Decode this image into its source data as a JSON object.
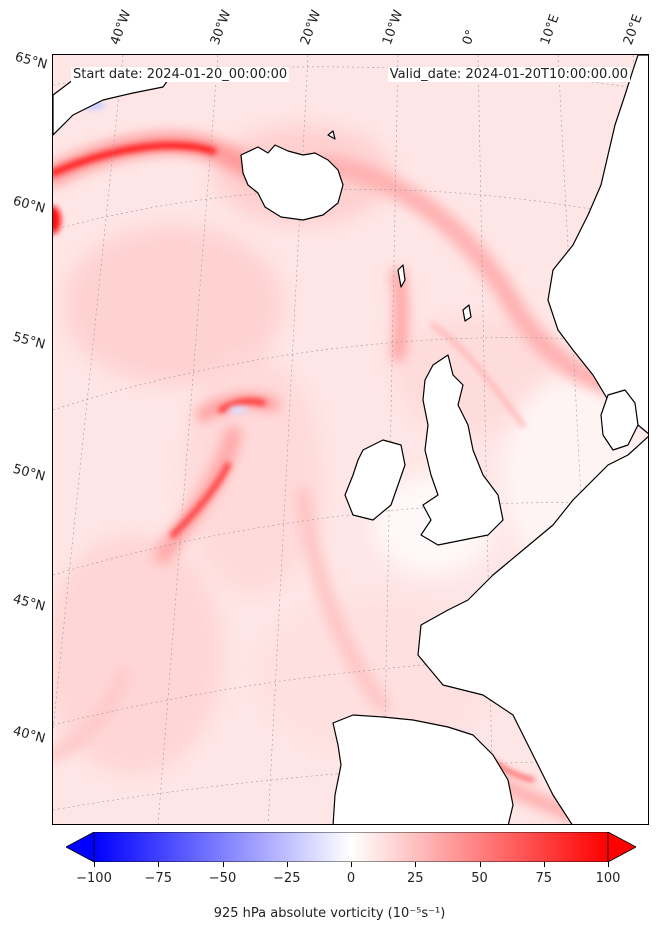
{
  "header": {
    "start_date": "Start date: 2024-01-20_00:00:00",
    "valid_date": "Valid_date: 2024-01-20T10:00:00.00"
  },
  "map": {
    "lon_labels": [
      "40°W",
      "30°W",
      "20°W",
      "10°W",
      "0°",
      "10°E",
      "20°E"
    ],
    "lat_labels": [
      "65°N",
      "60°N",
      "55°N",
      "50°N",
      "45°N",
      "40°N"
    ],
    "colors": {
      "land": "#ffffff",
      "sea_background": "#fff0f0",
      "coastline": "#000000",
      "max_positive": "#ff0000",
      "max_negative": "#0000ff"
    }
  },
  "colorbar": {
    "min": -100,
    "max": 100,
    "ticks": [
      "−100",
      "−75",
      "−50",
      "−25",
      "0",
      "25",
      "50",
      "75",
      "100"
    ],
    "tick_values": [
      -100,
      -75,
      -50,
      -25,
      0,
      25,
      50,
      75,
      100
    ],
    "title": "925 hPa absolute vorticity (10⁻⁵s⁻¹)"
  }
}
